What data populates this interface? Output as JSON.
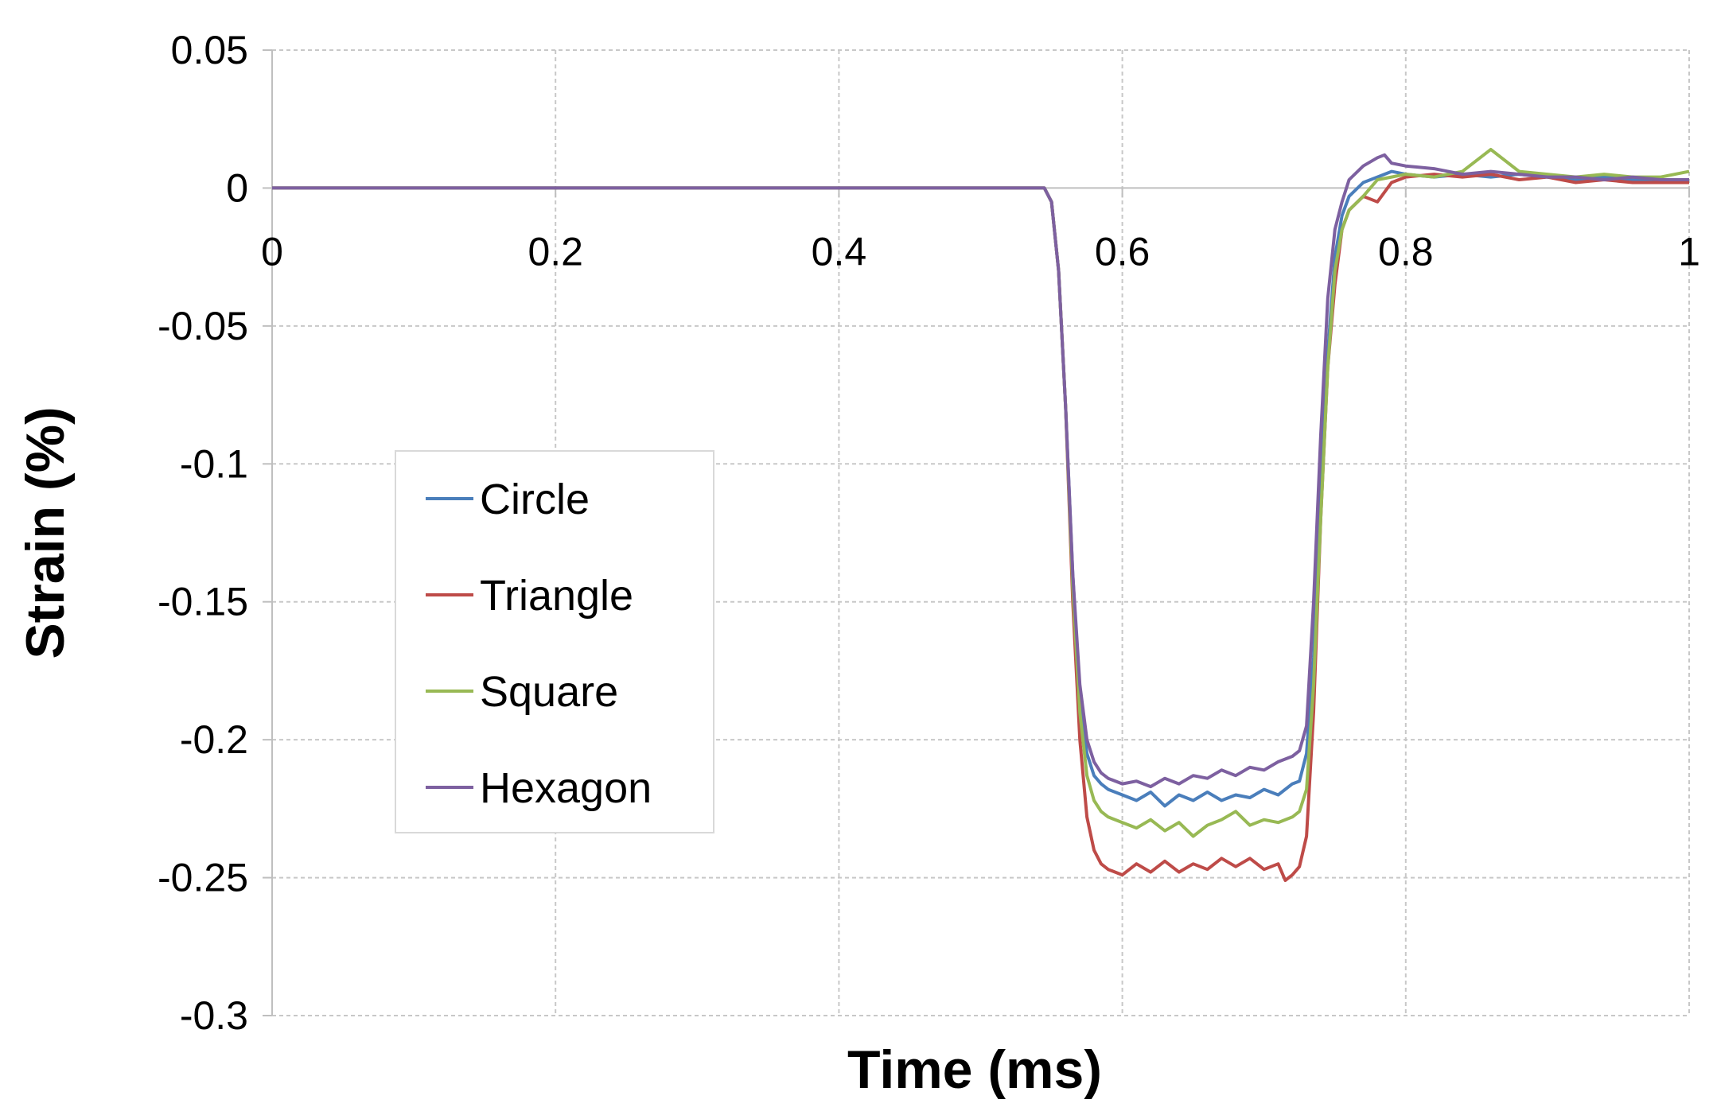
{
  "chart_data": {
    "type": "line",
    "title": "",
    "xlabel": "Time (ms)",
    "ylabel": "Strain (%)",
    "xlim": [
      0,
      1
    ],
    "ylim": [
      -0.3,
      0.05
    ],
    "xticks": [
      0,
      0.2,
      0.4,
      0.6,
      0.8,
      1
    ],
    "xtick_labels": [
      "0",
      "0.2",
      "0.4",
      "0.6",
      "0.8",
      "1"
    ],
    "yticks": [
      0.05,
      0,
      -0.05,
      -0.1,
      -0.15,
      -0.2,
      -0.25,
      -0.3
    ],
    "ytick_labels": [
      "0.05",
      "0",
      "-0.05",
      "-0.1",
      "-0.15",
      "-0.2",
      "-0.25",
      "-0.3"
    ],
    "grid": true,
    "legend_position": "left",
    "series": [
      {
        "name": "Circle",
        "color": "#4a7ebb",
        "x": [
          0,
          0.1,
          0.2,
          0.3,
          0.4,
          0.5,
          0.545,
          0.55,
          0.555,
          0.56,
          0.565,
          0.57,
          0.575,
          0.58,
          0.585,
          0.59,
          0.6,
          0.61,
          0.62,
          0.63,
          0.64,
          0.65,
          0.66,
          0.67,
          0.68,
          0.69,
          0.7,
          0.71,
          0.72,
          0.725,
          0.73,
          0.735,
          0.74,
          0.745,
          0.75,
          0.755,
          0.76,
          0.77,
          0.78,
          0.79,
          0.8,
          0.82,
          0.84,
          0.86,
          0.88,
          0.9,
          0.92,
          0.94,
          0.96,
          0.98,
          1.0
        ],
        "y": [
          0,
          0,
          0,
          0,
          0,
          0,
          0,
          -0.005,
          -0.03,
          -0.08,
          -0.14,
          -0.185,
          -0.205,
          -0.213,
          -0.216,
          -0.218,
          -0.22,
          -0.222,
          -0.219,
          -0.224,
          -0.22,
          -0.222,
          -0.219,
          -0.222,
          -0.22,
          -0.221,
          -0.218,
          -0.22,
          -0.216,
          -0.215,
          -0.205,
          -0.17,
          -0.11,
          -0.06,
          -0.025,
          -0.01,
          -0.003,
          0.002,
          0.004,
          0.006,
          0.005,
          0.004,
          0.005,
          0.004,
          0.005,
          0.004,
          0.003,
          0.004,
          0.003,
          0.003,
          0.003
        ]
      },
      {
        "name": "Triangle",
        "color": "#be4b48",
        "x": [
          0,
          0.1,
          0.2,
          0.3,
          0.4,
          0.5,
          0.545,
          0.55,
          0.555,
          0.56,
          0.565,
          0.57,
          0.575,
          0.58,
          0.585,
          0.59,
          0.6,
          0.61,
          0.62,
          0.63,
          0.64,
          0.65,
          0.66,
          0.67,
          0.68,
          0.69,
          0.7,
          0.71,
          0.715,
          0.72,
          0.725,
          0.73,
          0.735,
          0.74,
          0.745,
          0.75,
          0.755,
          0.76,
          0.77,
          0.78,
          0.79,
          0.8,
          0.82,
          0.84,
          0.86,
          0.88,
          0.9,
          0.92,
          0.94,
          0.96,
          0.98,
          1.0
        ],
        "y": [
          0,
          0,
          0,
          0,
          0,
          0,
          0,
          -0.005,
          -0.03,
          -0.08,
          -0.15,
          -0.2,
          -0.228,
          -0.24,
          -0.245,
          -0.247,
          -0.249,
          -0.245,
          -0.248,
          -0.244,
          -0.248,
          -0.245,
          -0.247,
          -0.243,
          -0.246,
          -0.243,
          -0.247,
          -0.245,
          -0.251,
          -0.249,
          -0.246,
          -0.235,
          -0.19,
          -0.12,
          -0.065,
          -0.035,
          -0.015,
          -0.008,
          -0.003,
          -0.005,
          0.002,
          0.004,
          0.005,
          0.004,
          0.005,
          0.003,
          0.004,
          0.002,
          0.003,
          0.002,
          0.002,
          0.002
        ]
      },
      {
        "name": "Square",
        "color": "#98b954",
        "x": [
          0,
          0.1,
          0.2,
          0.3,
          0.4,
          0.5,
          0.545,
          0.55,
          0.555,
          0.56,
          0.565,
          0.57,
          0.575,
          0.58,
          0.585,
          0.59,
          0.6,
          0.61,
          0.62,
          0.63,
          0.64,
          0.65,
          0.66,
          0.67,
          0.68,
          0.69,
          0.7,
          0.71,
          0.72,
          0.725,
          0.73,
          0.735,
          0.74,
          0.745,
          0.75,
          0.755,
          0.76,
          0.77,
          0.78,
          0.79,
          0.8,
          0.82,
          0.84,
          0.86,
          0.88,
          0.9,
          0.92,
          0.94,
          0.96,
          0.98,
          1.0
        ],
        "y": [
          0,
          0,
          0,
          0,
          0,
          0,
          0,
          -0.005,
          -0.03,
          -0.08,
          -0.145,
          -0.19,
          -0.213,
          -0.222,
          -0.226,
          -0.228,
          -0.23,
          -0.232,
          -0.229,
          -0.233,
          -0.23,
          -0.235,
          -0.231,
          -0.229,
          -0.226,
          -0.231,
          -0.229,
          -0.23,
          -0.228,
          -0.226,
          -0.218,
          -0.18,
          -0.12,
          -0.065,
          -0.03,
          -0.015,
          -0.008,
          -0.003,
          0.003,
          0.004,
          0.005,
          0.004,
          0.006,
          0.014,
          0.006,
          0.005,
          0.004,
          0.005,
          0.004,
          0.004,
          0.006
        ]
      },
      {
        "name": "Hexagon",
        "color": "#7d60a0",
        "x": [
          0,
          0.1,
          0.2,
          0.3,
          0.4,
          0.5,
          0.545,
          0.55,
          0.555,
          0.56,
          0.565,
          0.57,
          0.575,
          0.58,
          0.585,
          0.59,
          0.6,
          0.61,
          0.62,
          0.63,
          0.64,
          0.65,
          0.66,
          0.67,
          0.68,
          0.69,
          0.7,
          0.71,
          0.72,
          0.725,
          0.73,
          0.735,
          0.74,
          0.745,
          0.75,
          0.755,
          0.76,
          0.77,
          0.78,
          0.785,
          0.79,
          0.8,
          0.82,
          0.84,
          0.86,
          0.88,
          0.9,
          0.92,
          0.94,
          0.96,
          0.98,
          1.0
        ],
        "y": [
          0,
          0,
          0,
          0,
          0,
          0,
          0,
          -0.005,
          -0.03,
          -0.08,
          -0.14,
          -0.18,
          -0.2,
          -0.208,
          -0.212,
          -0.214,
          -0.216,
          -0.215,
          -0.217,
          -0.214,
          -0.216,
          -0.213,
          -0.214,
          -0.211,
          -0.213,
          -0.21,
          -0.211,
          -0.208,
          -0.206,
          -0.204,
          -0.195,
          -0.15,
          -0.09,
          -0.04,
          -0.015,
          -0.005,
          0.003,
          0.008,
          0.011,
          0.012,
          0.009,
          0.008,
          0.007,
          0.005,
          0.006,
          0.005,
          0.004,
          0.004,
          0.003,
          0.004,
          0.003,
          0.003
        ]
      }
    ]
  }
}
